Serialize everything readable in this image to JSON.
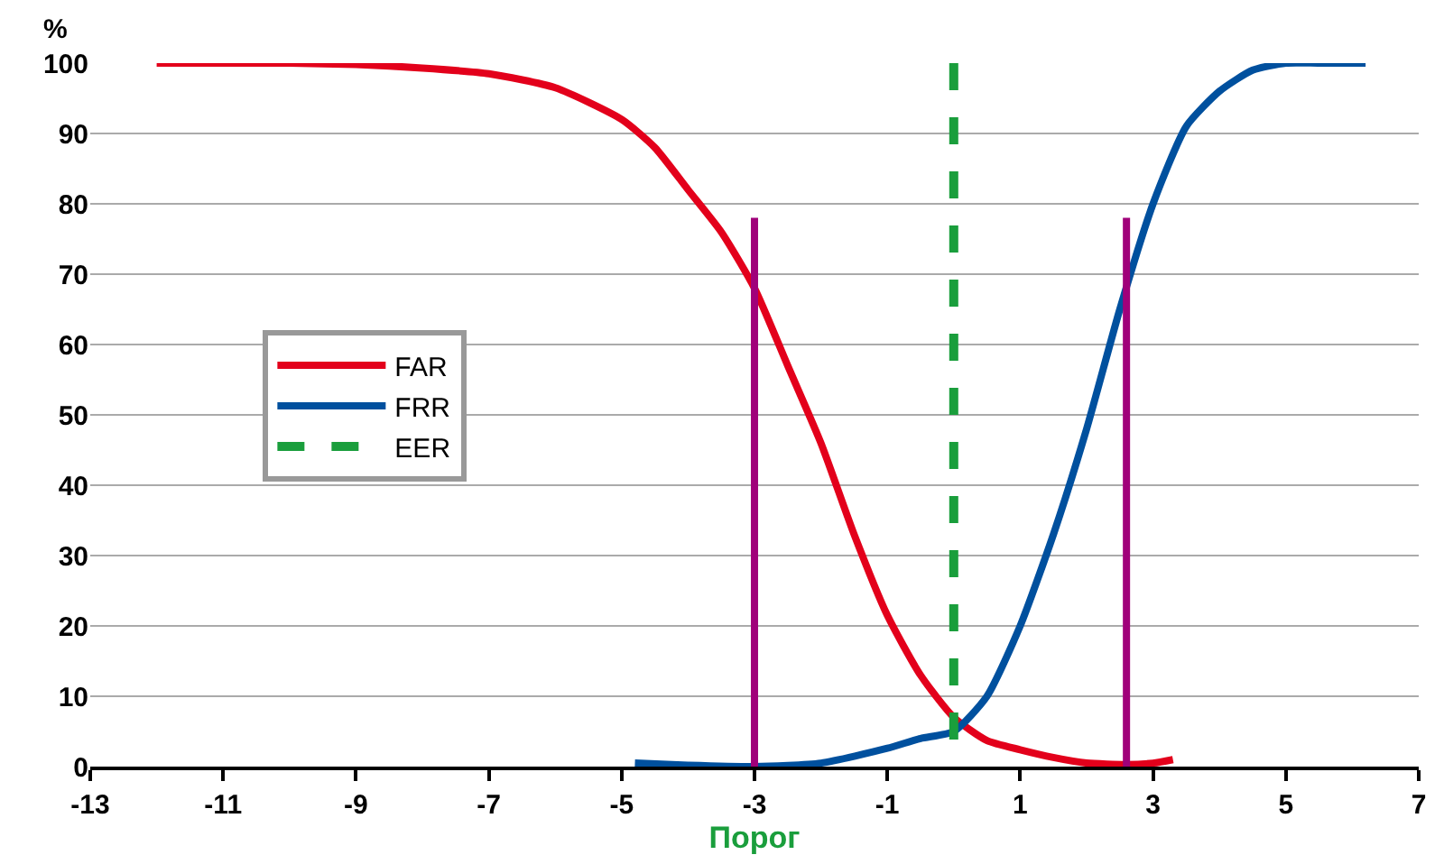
{
  "chart_data": {
    "type": "line",
    "xlabel": "Порог",
    "ylabel": "%",
    "xlim": [
      -13,
      7
    ],
    "xticks": [
      -13,
      -11,
      -9,
      -7,
      -5,
      -3,
      -1,
      1,
      3,
      5,
      7
    ],
    "ylim": [
      0,
      100
    ],
    "yticks": [
      0,
      10,
      20,
      30,
      40,
      50,
      60,
      70,
      80,
      90,
      100
    ],
    "grid": "y",
    "legend": "left",
    "line_style": "solid",
    "marker": "none",
    "series": [
      {
        "name": "FAR",
        "color": "#e3001b",
        "x": [
          -12,
          -11,
          -10,
          -9,
          -8,
          -7,
          -6,
          -5,
          -4.5,
          -4,
          -3.5,
          -3,
          -2.5,
          -2,
          -1.5,
          -1,
          -0.5,
          0,
          0.5,
          1,
          1.5,
          2,
          2.6,
          3,
          3.3
        ],
        "values": [
          100,
          100,
          100,
          99.8,
          99.3,
          98.5,
          96.5,
          92,
          88,
          82,
          76,
          68,
          57,
          46,
          33,
          21.5,
          13,
          7,
          3.7,
          2.4,
          1.3,
          0.5,
          0.3,
          0.5,
          1
        ]
      },
      {
        "name": "FRR",
        "color": "#00509e",
        "x": [
          -4.8,
          -4,
          -3,
          -2,
          -1,
          -0.5,
          0,
          0.5,
          1,
          1.5,
          2,
          2.5,
          3,
          3.5,
          4,
          4.5,
          5,
          5.5,
          6.2
        ],
        "values": [
          0.5,
          0.2,
          0,
          0.5,
          2.6,
          4,
          5,
          10,
          20,
          33,
          48,
          65,
          80,
          91,
          96,
          99,
          100,
          100,
          100
        ]
      },
      {
        "name": "EER",
        "color": "#1a9e3c",
        "line_style": "dashed",
        "x": [
          0,
          0
        ],
        "values": [
          100,
          0
        ]
      },
      {
        "color": "#a0007a",
        "x": [
          -3,
          -3
        ],
        "values": [
          0,
          78
        ]
      },
      {
        "color": "#a0007a",
        "x": [
          2.6,
          2.6
        ],
        "values": [
          0,
          78
        ]
      }
    ]
  }
}
